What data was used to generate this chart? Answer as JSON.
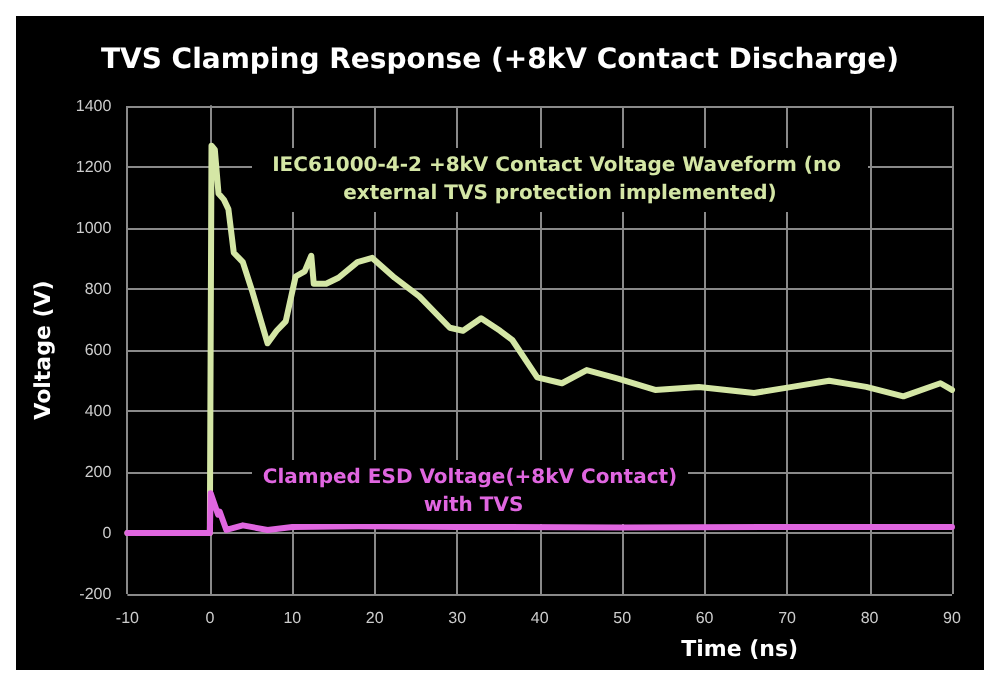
{
  "chart_data": {
    "type": "line",
    "title": "TVS Clamping Response (+8kV Contact Discharge)",
    "xlabel": "Time (ns)",
    "ylabel": "Voltage (V)",
    "xlim": [
      -10,
      90
    ],
    "xticks": [
      -10,
      0,
      10,
      20,
      30,
      40,
      50,
      60,
      70,
      80,
      90
    ],
    "ylim": [
      -200,
      1400
    ],
    "yticks": [
      -200,
      0,
      200,
      400,
      600,
      800,
      1000,
      1200,
      1400
    ],
    "grid": true,
    "legend": false,
    "marker": "none",
    "line_style": "solid",
    "series": [
      {
        "name": "IEC61000-4-2 +8kV Contact Voltage Waveform (no external TVS protection implemented)",
        "color": "#d4e6a5",
        "x": [
          -10,
          -5,
          0,
          0.2,
          0.6,
          1.05,
          1.7,
          2.25,
          2.9,
          4,
          5.1,
          7,
          8.1,
          9.2,
          10.4,
          11.5,
          12.3,
          12.6,
          14.1,
          15.6,
          17.9,
          19.7,
          22.4,
          25.4,
          29.1,
          30.7,
          32.9,
          35.2,
          36.7,
          39.7,
          42.7,
          45.7,
          49.5,
          54,
          59.3,
          66,
          70.6,
          75.1,
          79.6,
          84.1,
          88.6,
          90
        ],
        "values": [
          0,
          0,
          0,
          1270,
          1257,
          1113,
          1093,
          1062,
          919,
          888,
          796,
          622,
          663,
          694,
          841,
          858,
          909,
          817,
          817,
          837,
          888,
          902,
          837,
          776,
          673,
          663,
          704,
          663,
          632,
          510,
          491,
          534,
          506,
          469,
          479,
          459,
          479,
          499,
          479,
          448,
          491,
          469
        ]
      },
      {
        "name": "Clamped ESD Voltage(+8kV Contact) with TVS",
        "color": "#e066e0",
        "x": [
          -10,
          -5,
          0,
          0.1,
          1,
          1.2,
          2,
          4,
          7,
          10,
          18,
          30,
          50,
          70,
          90
        ],
        "values": [
          0,
          0,
          0,
          130,
          60,
          70,
          10,
          25,
          10,
          20,
          22,
          20,
          18,
          20,
          20
        ]
      }
    ]
  }
}
